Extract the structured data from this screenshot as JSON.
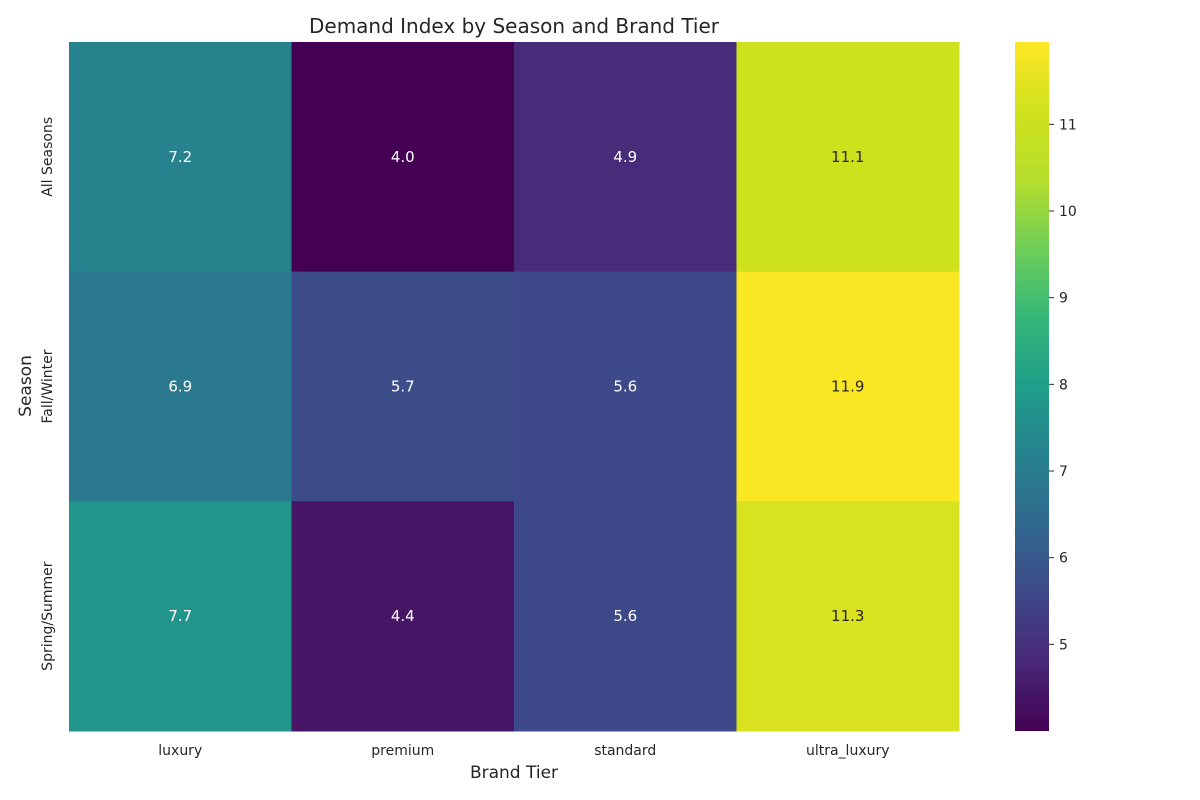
{
  "chart_data": {
    "type": "heatmap",
    "title": "Demand Index by Season and Brand Tier",
    "xlabel": "Brand Tier",
    "ylabel": "Season",
    "x_categories": [
      "luxury",
      "premium",
      "standard",
      "ultra_luxury"
    ],
    "y_categories": [
      "All Seasons",
      "Fall/Winter",
      "Spring/Summer"
    ],
    "values": [
      [
        7.2,
        4.0,
        4.9,
        11.1
      ],
      [
        6.9,
        5.7,
        5.6,
        11.9
      ],
      [
        7.7,
        4.4,
        5.6,
        11.3
      ]
    ],
    "colormap": "viridis",
    "color_range": [
      4.0,
      11.95
    ],
    "colorbar_ticks": [
      5,
      6,
      7,
      8,
      9,
      10,
      11
    ],
    "annotate_cells": true,
    "annotation_format": "0.1f",
    "grid": false
  }
}
